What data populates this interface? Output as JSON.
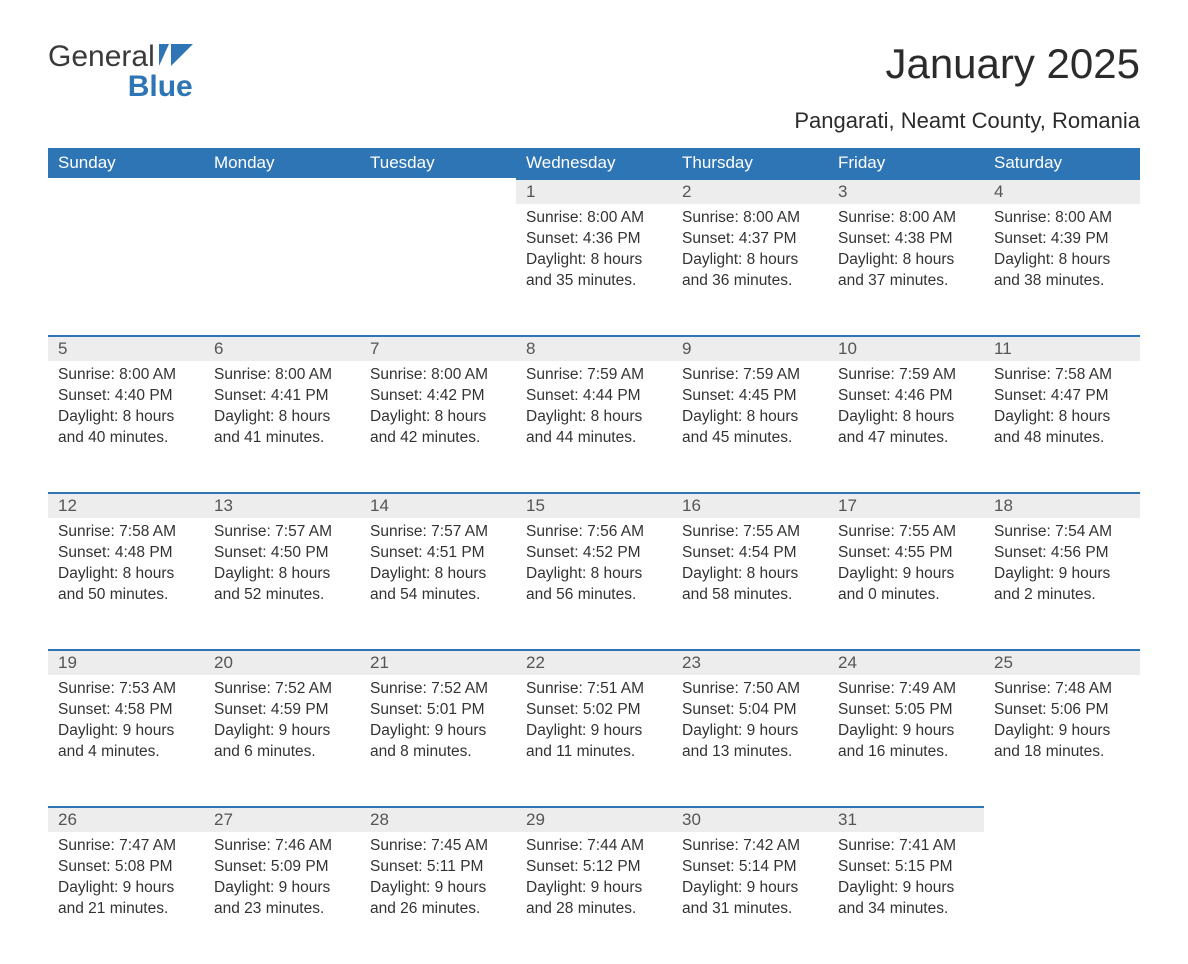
{
  "logo": {
    "word1": "General",
    "word2": "Blue",
    "flag_color": "#2e75b6"
  },
  "title": "January 2025",
  "subtitle": "Pangarati, Neamt County, Romania",
  "colors": {
    "header_bg": "#2e75b6",
    "header_text": "#ffffff",
    "daynum_bg": "#ededed",
    "daynum_border": "#2e75b6",
    "body_text": "#333333",
    "page_bg": "#ffffff"
  },
  "fontsize": {
    "title": 42,
    "subtitle": 22,
    "th": 17,
    "daynum": 17,
    "cell": 15.5
  },
  "columns": [
    "Sunday",
    "Monday",
    "Tuesday",
    "Wednesday",
    "Thursday",
    "Friday",
    "Saturday"
  ],
  "weeks": [
    [
      null,
      null,
      null,
      {
        "n": "1",
        "sunrise": "8:00 AM",
        "sunset": "4:36 PM",
        "dl_h": "8",
        "dl_m": "35"
      },
      {
        "n": "2",
        "sunrise": "8:00 AM",
        "sunset": "4:37 PM",
        "dl_h": "8",
        "dl_m": "36"
      },
      {
        "n": "3",
        "sunrise": "8:00 AM",
        "sunset": "4:38 PM",
        "dl_h": "8",
        "dl_m": "37"
      },
      {
        "n": "4",
        "sunrise": "8:00 AM",
        "sunset": "4:39 PM",
        "dl_h": "8",
        "dl_m": "38"
      }
    ],
    [
      {
        "n": "5",
        "sunrise": "8:00 AM",
        "sunset": "4:40 PM",
        "dl_h": "8",
        "dl_m": "40"
      },
      {
        "n": "6",
        "sunrise": "8:00 AM",
        "sunset": "4:41 PM",
        "dl_h": "8",
        "dl_m": "41"
      },
      {
        "n": "7",
        "sunrise": "8:00 AM",
        "sunset": "4:42 PM",
        "dl_h": "8",
        "dl_m": "42"
      },
      {
        "n": "8",
        "sunrise": "7:59 AM",
        "sunset": "4:44 PM",
        "dl_h": "8",
        "dl_m": "44"
      },
      {
        "n": "9",
        "sunrise": "7:59 AM",
        "sunset": "4:45 PM",
        "dl_h": "8",
        "dl_m": "45"
      },
      {
        "n": "10",
        "sunrise": "7:59 AM",
        "sunset": "4:46 PM",
        "dl_h": "8",
        "dl_m": "47"
      },
      {
        "n": "11",
        "sunrise": "7:58 AM",
        "sunset": "4:47 PM",
        "dl_h": "8",
        "dl_m": "48"
      }
    ],
    [
      {
        "n": "12",
        "sunrise": "7:58 AM",
        "sunset": "4:48 PM",
        "dl_h": "8",
        "dl_m": "50"
      },
      {
        "n": "13",
        "sunrise": "7:57 AM",
        "sunset": "4:50 PM",
        "dl_h": "8",
        "dl_m": "52"
      },
      {
        "n": "14",
        "sunrise": "7:57 AM",
        "sunset": "4:51 PM",
        "dl_h": "8",
        "dl_m": "54"
      },
      {
        "n": "15",
        "sunrise": "7:56 AM",
        "sunset": "4:52 PM",
        "dl_h": "8",
        "dl_m": "56"
      },
      {
        "n": "16",
        "sunrise": "7:55 AM",
        "sunset": "4:54 PM",
        "dl_h": "8",
        "dl_m": "58"
      },
      {
        "n": "17",
        "sunrise": "7:55 AM",
        "sunset": "4:55 PM",
        "dl_h": "9",
        "dl_m": "0"
      },
      {
        "n": "18",
        "sunrise": "7:54 AM",
        "sunset": "4:56 PM",
        "dl_h": "9",
        "dl_m": "2"
      }
    ],
    [
      {
        "n": "19",
        "sunrise": "7:53 AM",
        "sunset": "4:58 PM",
        "dl_h": "9",
        "dl_m": "4"
      },
      {
        "n": "20",
        "sunrise": "7:52 AM",
        "sunset": "4:59 PM",
        "dl_h": "9",
        "dl_m": "6"
      },
      {
        "n": "21",
        "sunrise": "7:52 AM",
        "sunset": "5:01 PM",
        "dl_h": "9",
        "dl_m": "8"
      },
      {
        "n": "22",
        "sunrise": "7:51 AM",
        "sunset": "5:02 PM",
        "dl_h": "9",
        "dl_m": "11"
      },
      {
        "n": "23",
        "sunrise": "7:50 AM",
        "sunset": "5:04 PM",
        "dl_h": "9",
        "dl_m": "13"
      },
      {
        "n": "24",
        "sunrise": "7:49 AM",
        "sunset": "5:05 PM",
        "dl_h": "9",
        "dl_m": "16"
      },
      {
        "n": "25",
        "sunrise": "7:48 AM",
        "sunset": "5:06 PM",
        "dl_h": "9",
        "dl_m": "18"
      }
    ],
    [
      {
        "n": "26",
        "sunrise": "7:47 AM",
        "sunset": "5:08 PM",
        "dl_h": "9",
        "dl_m": "21"
      },
      {
        "n": "27",
        "sunrise": "7:46 AM",
        "sunset": "5:09 PM",
        "dl_h": "9",
        "dl_m": "23"
      },
      {
        "n": "28",
        "sunrise": "7:45 AM",
        "sunset": "5:11 PM",
        "dl_h": "9",
        "dl_m": "26"
      },
      {
        "n": "29",
        "sunrise": "7:44 AM",
        "sunset": "5:12 PM",
        "dl_h": "9",
        "dl_m": "28"
      },
      {
        "n": "30",
        "sunrise": "7:42 AM",
        "sunset": "5:14 PM",
        "dl_h": "9",
        "dl_m": "31"
      },
      {
        "n": "31",
        "sunrise": "7:41 AM",
        "sunset": "5:15 PM",
        "dl_h": "9",
        "dl_m": "34"
      },
      null
    ]
  ],
  "labels": {
    "sunrise": "Sunrise: ",
    "sunset": "Sunset: ",
    "daylight1": "Daylight: ",
    "hours": " hours",
    "and": "and ",
    "minutes": " minutes."
  }
}
